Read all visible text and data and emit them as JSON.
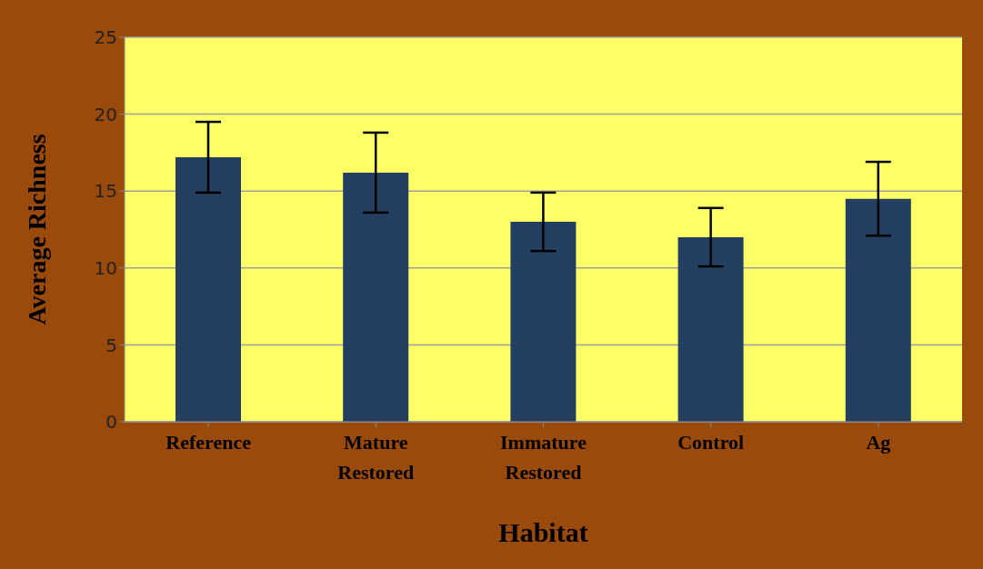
{
  "chart_data": {
    "type": "bar",
    "xlabel": "Habitat",
    "ylabel": "Average Richness",
    "categories": [
      "Reference",
      "Mature Restored",
      "Immature Restored",
      "Control",
      "Ag"
    ],
    "values": [
      17.2,
      16.2,
      13.0,
      12.0,
      14.5
    ],
    "errors": [
      2.3,
      2.6,
      1.9,
      1.9,
      2.4
    ],
    "color": "#243f60",
    "ylim": [
      0,
      25
    ],
    "yticks": [
      0,
      5,
      10,
      15,
      20,
      25
    ],
    "grid": "y",
    "legend": false
  }
}
